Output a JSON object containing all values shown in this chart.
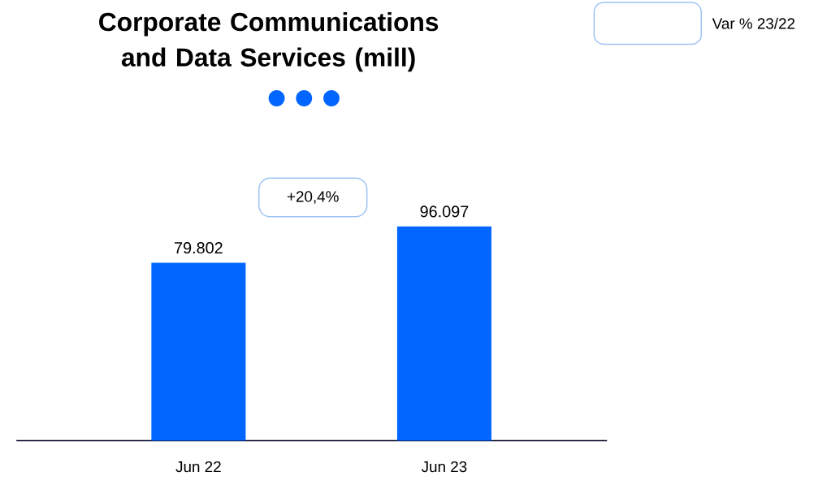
{
  "chart_data": {
    "type": "bar",
    "title": "Corporate Communications and Data Services (mill)",
    "categories": [
      "Jun 22",
      "Jun 23"
    ],
    "values": [
      79.802,
      96.097
    ],
    "value_labels": [
      "79.802",
      "96.097"
    ],
    "color": "#0066ff",
    "annotations": [
      "+20,4%",
      "Var % 23/22"
    ]
  }
}
